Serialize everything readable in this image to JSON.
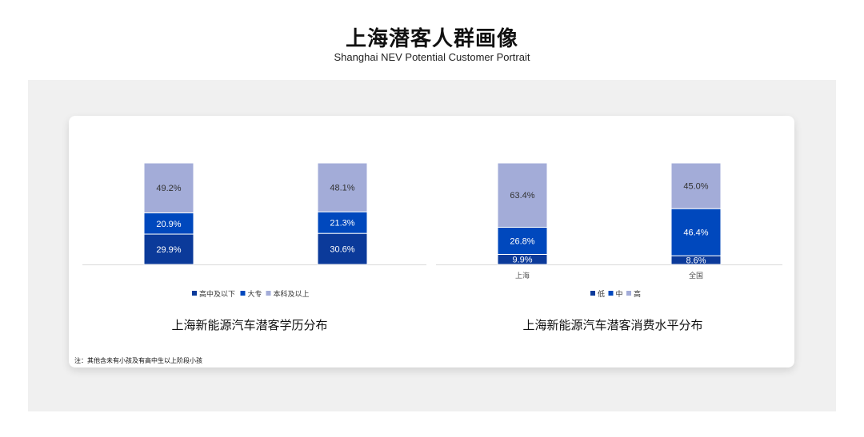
{
  "header": {
    "title": "上海潜客人群画像",
    "subtitle": "Shanghai NEV Potential Customer Portrait"
  },
  "note": "注：其他含未有小孩及有高中生以上阶段小孩",
  "colors": {
    "dark": "#0b3a9a",
    "mid": "#0048bd",
    "light": "#a3acd8"
  },
  "chart_data": [
    {
      "type": "bar",
      "stacked": true,
      "title": "上海新能源汽车潜客学历分布",
      "categories": [
        "",
        ""
      ],
      "series": [
        {
          "name": "高中及以下",
          "values": [
            29.9,
            30.6
          ]
        },
        {
          "name": "大专",
          "values": [
            20.9,
            21.3
          ]
        },
        {
          "name": "本科及以上",
          "values": [
            49.2,
            48.1
          ]
        }
      ],
      "legend": "bottom",
      "grid": false
    },
    {
      "type": "bar",
      "stacked": true,
      "title": "上海新能源汽车潜客消费水平分布",
      "categories": [
        "上海",
        "全国"
      ],
      "series": [
        {
          "name": "低",
          "values": [
            9.9,
            8.6
          ]
        },
        {
          "name": "中",
          "values": [
            26.8,
            46.4
          ]
        },
        {
          "name": "高",
          "values": [
            63.4,
            45.0
          ]
        }
      ],
      "legend": "bottom",
      "grid": false
    }
  ]
}
